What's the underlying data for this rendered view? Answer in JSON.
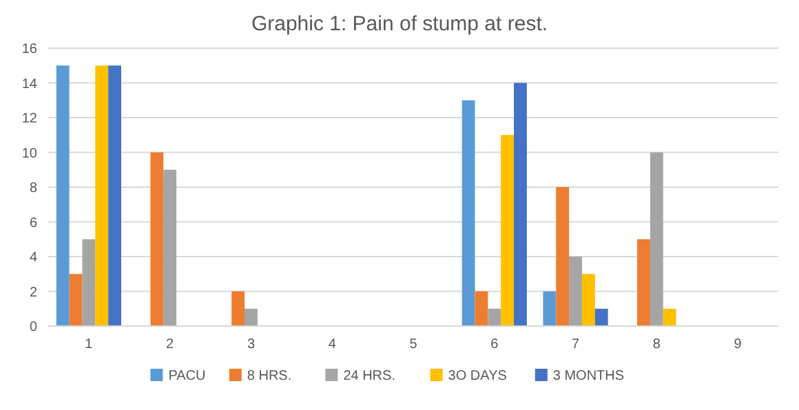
{
  "chart_data": {
    "type": "bar",
    "title": "Graphic 1: Pain of stump at rest.",
    "categories": [
      "1",
      "2",
      "3",
      "4",
      "5",
      "6",
      "7",
      "8",
      "9"
    ],
    "series": [
      {
        "name": "PACU",
        "color": "#5b9bd5",
        "values": [
          15,
          0,
          0,
          0,
          0,
          13,
          2,
          0,
          0
        ]
      },
      {
        "name": "8 HRS.",
        "color": "#ed7d31",
        "values": [
          3,
          10,
          2,
          0,
          0,
          2,
          8,
          5,
          0
        ]
      },
      {
        "name": "24 HRS.",
        "color": "#a5a5a5",
        "values": [
          5,
          9,
          1,
          0,
          0,
          1,
          4,
          10,
          0
        ]
      },
      {
        "name": "3O DAYS",
        "color": "#ffc000",
        "values": [
          15,
          0,
          0,
          0,
          0,
          11,
          3,
          1,
          0
        ]
      },
      {
        "name": "3 MONTHS",
        "color": "#4472c4",
        "values": [
          15,
          0,
          0,
          0,
          0,
          14,
          1,
          0,
          0
        ]
      }
    ],
    "ylim": [
      0,
      16
    ],
    "yticks": [
      0,
      2,
      4,
      6,
      8,
      10,
      12,
      14,
      16
    ],
    "grid": "y",
    "legend": "bottom"
  }
}
